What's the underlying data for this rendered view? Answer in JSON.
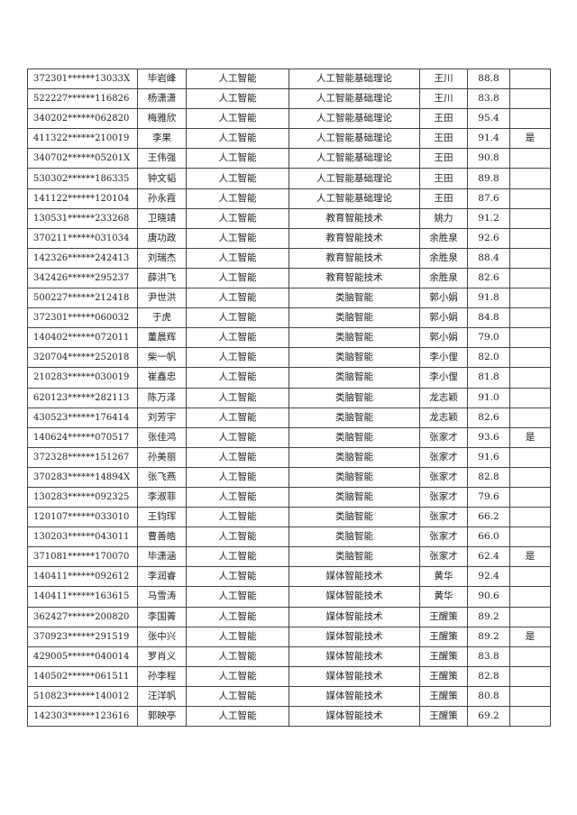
{
  "rows": [
    [
      "372301******13033X",
      "毕岩峰",
      "人工智能",
      "人工智能基础理论",
      "王川",
      "88.8",
      ""
    ],
    [
      "522227******116826",
      "杨潇潇",
      "人工智能",
      "人工智能基础理论",
      "王川",
      "83.8",
      ""
    ],
    [
      "340202******062820",
      "梅雅欣",
      "人工智能",
      "人工智能基础理论",
      "王田",
      "95.4",
      ""
    ],
    [
      "411322******210019",
      "李果",
      "人工智能",
      "人工智能基础理论",
      "王田",
      "91.4",
      "是"
    ],
    [
      "340702******05201X",
      "王伟强",
      "人工智能",
      "人工智能基础理论",
      "王田",
      "90.8",
      ""
    ],
    [
      "530302******186335",
      "钟文韬",
      "人工智能",
      "人工智能基础理论",
      "王田",
      "89.8",
      ""
    ],
    [
      "141122******120104",
      "孙永霞",
      "人工智能",
      "人工智能基础理论",
      "王田",
      "87.6",
      ""
    ],
    [
      "130531******233268",
      "卫晓靖",
      "人工智能",
      "教育智能技术",
      "姚力",
      "91.2",
      ""
    ],
    [
      "370211******031034",
      "唐功政",
      "人工智能",
      "教育智能技术",
      "余胜泉",
      "92.6",
      ""
    ],
    [
      "142326******242413",
      "刘瑞杰",
      "人工智能",
      "教育智能技术",
      "余胜泉",
      "88.4",
      ""
    ],
    [
      "342426******295237",
      "薛洪飞",
      "人工智能",
      "教育智能技术",
      "余胜泉",
      "82.6",
      ""
    ],
    [
      "500227******212418",
      "尹世洪",
      "人工智能",
      "类脑智能",
      "郭小娟",
      "91.8",
      ""
    ],
    [
      "372301******060032",
      "于虎",
      "人工智能",
      "类脑智能",
      "郭小娟",
      "84.8",
      ""
    ],
    [
      "140402******072011",
      "董晨辉",
      "人工智能",
      "类脑智能",
      "郭小娟",
      "79.0",
      ""
    ],
    [
      "320704******252018",
      "柴一帆",
      "人工智能",
      "类脑智能",
      "李小俚",
      "82.0",
      ""
    ],
    [
      "210283******030019",
      "崔鑫忠",
      "人工智能",
      "类脑智能",
      "李小俚",
      "81.8",
      ""
    ],
    [
      "620123******282113",
      "陈万泽",
      "人工智能",
      "类脑智能",
      "龙志颖",
      "91.0",
      ""
    ],
    [
      "430523******176414",
      "刘芳宇",
      "人工智能",
      "类脑智能",
      "龙志颖",
      "82.6",
      ""
    ],
    [
      "140624******070517",
      "张佳鸿",
      "人工智能",
      "类脑智能",
      "张家才",
      "93.6",
      "是"
    ],
    [
      "372328******151267",
      "孙美丽",
      "人工智能",
      "类脑智能",
      "张家才",
      "91.6",
      ""
    ],
    [
      "370283******14894X",
      "张飞燕",
      "人工智能",
      "类脑智能",
      "张家才",
      "82.8",
      ""
    ],
    [
      "130283******092325",
      "李淑菲",
      "人工智能",
      "类脑智能",
      "张家才",
      "79.6",
      ""
    ],
    [
      "120107******033010",
      "王钧珲",
      "人工智能",
      "类脑智能",
      "张家才",
      "66.2",
      ""
    ],
    [
      "130203******043011",
      "曹善皓",
      "人工智能",
      "类脑智能",
      "张家才",
      "66.0",
      ""
    ],
    [
      "371081******170070",
      "毕潇涵",
      "人工智能",
      "类脑智能",
      "张家才",
      "62.4",
      "是"
    ],
    [
      "140411******092612",
      "李润睿",
      "人工智能",
      "媒体智能技术",
      "黄华",
      "92.4",
      ""
    ],
    [
      "140411******163615",
      "马雪涛",
      "人工智能",
      "媒体智能技术",
      "黄华",
      "90.6",
      ""
    ],
    [
      "362427******200820",
      "李国菁",
      "人工智能",
      "媒体智能技术",
      "王醒策",
      "89.2",
      ""
    ],
    [
      "370923******291519",
      "张中兴",
      "人工智能",
      "媒体智能技术",
      "王醒策",
      "89.2",
      "是"
    ],
    [
      "429005******040014",
      "罗肖义",
      "人工智能",
      "媒体智能技术",
      "王醒策",
      "83.8",
      ""
    ],
    [
      "140502******061511",
      "孙李程",
      "人工智能",
      "媒体智能技术",
      "王醒策",
      "82.8",
      ""
    ],
    [
      "510823******140012",
      "汪洋帆",
      "人工智能",
      "媒体智能技术",
      "王醒策",
      "80.8",
      ""
    ],
    [
      "142303******123616",
      "郭映亭",
      "人工智能",
      "媒体智能技术",
      "王醒策",
      "69.2",
      ""
    ]
  ]
}
